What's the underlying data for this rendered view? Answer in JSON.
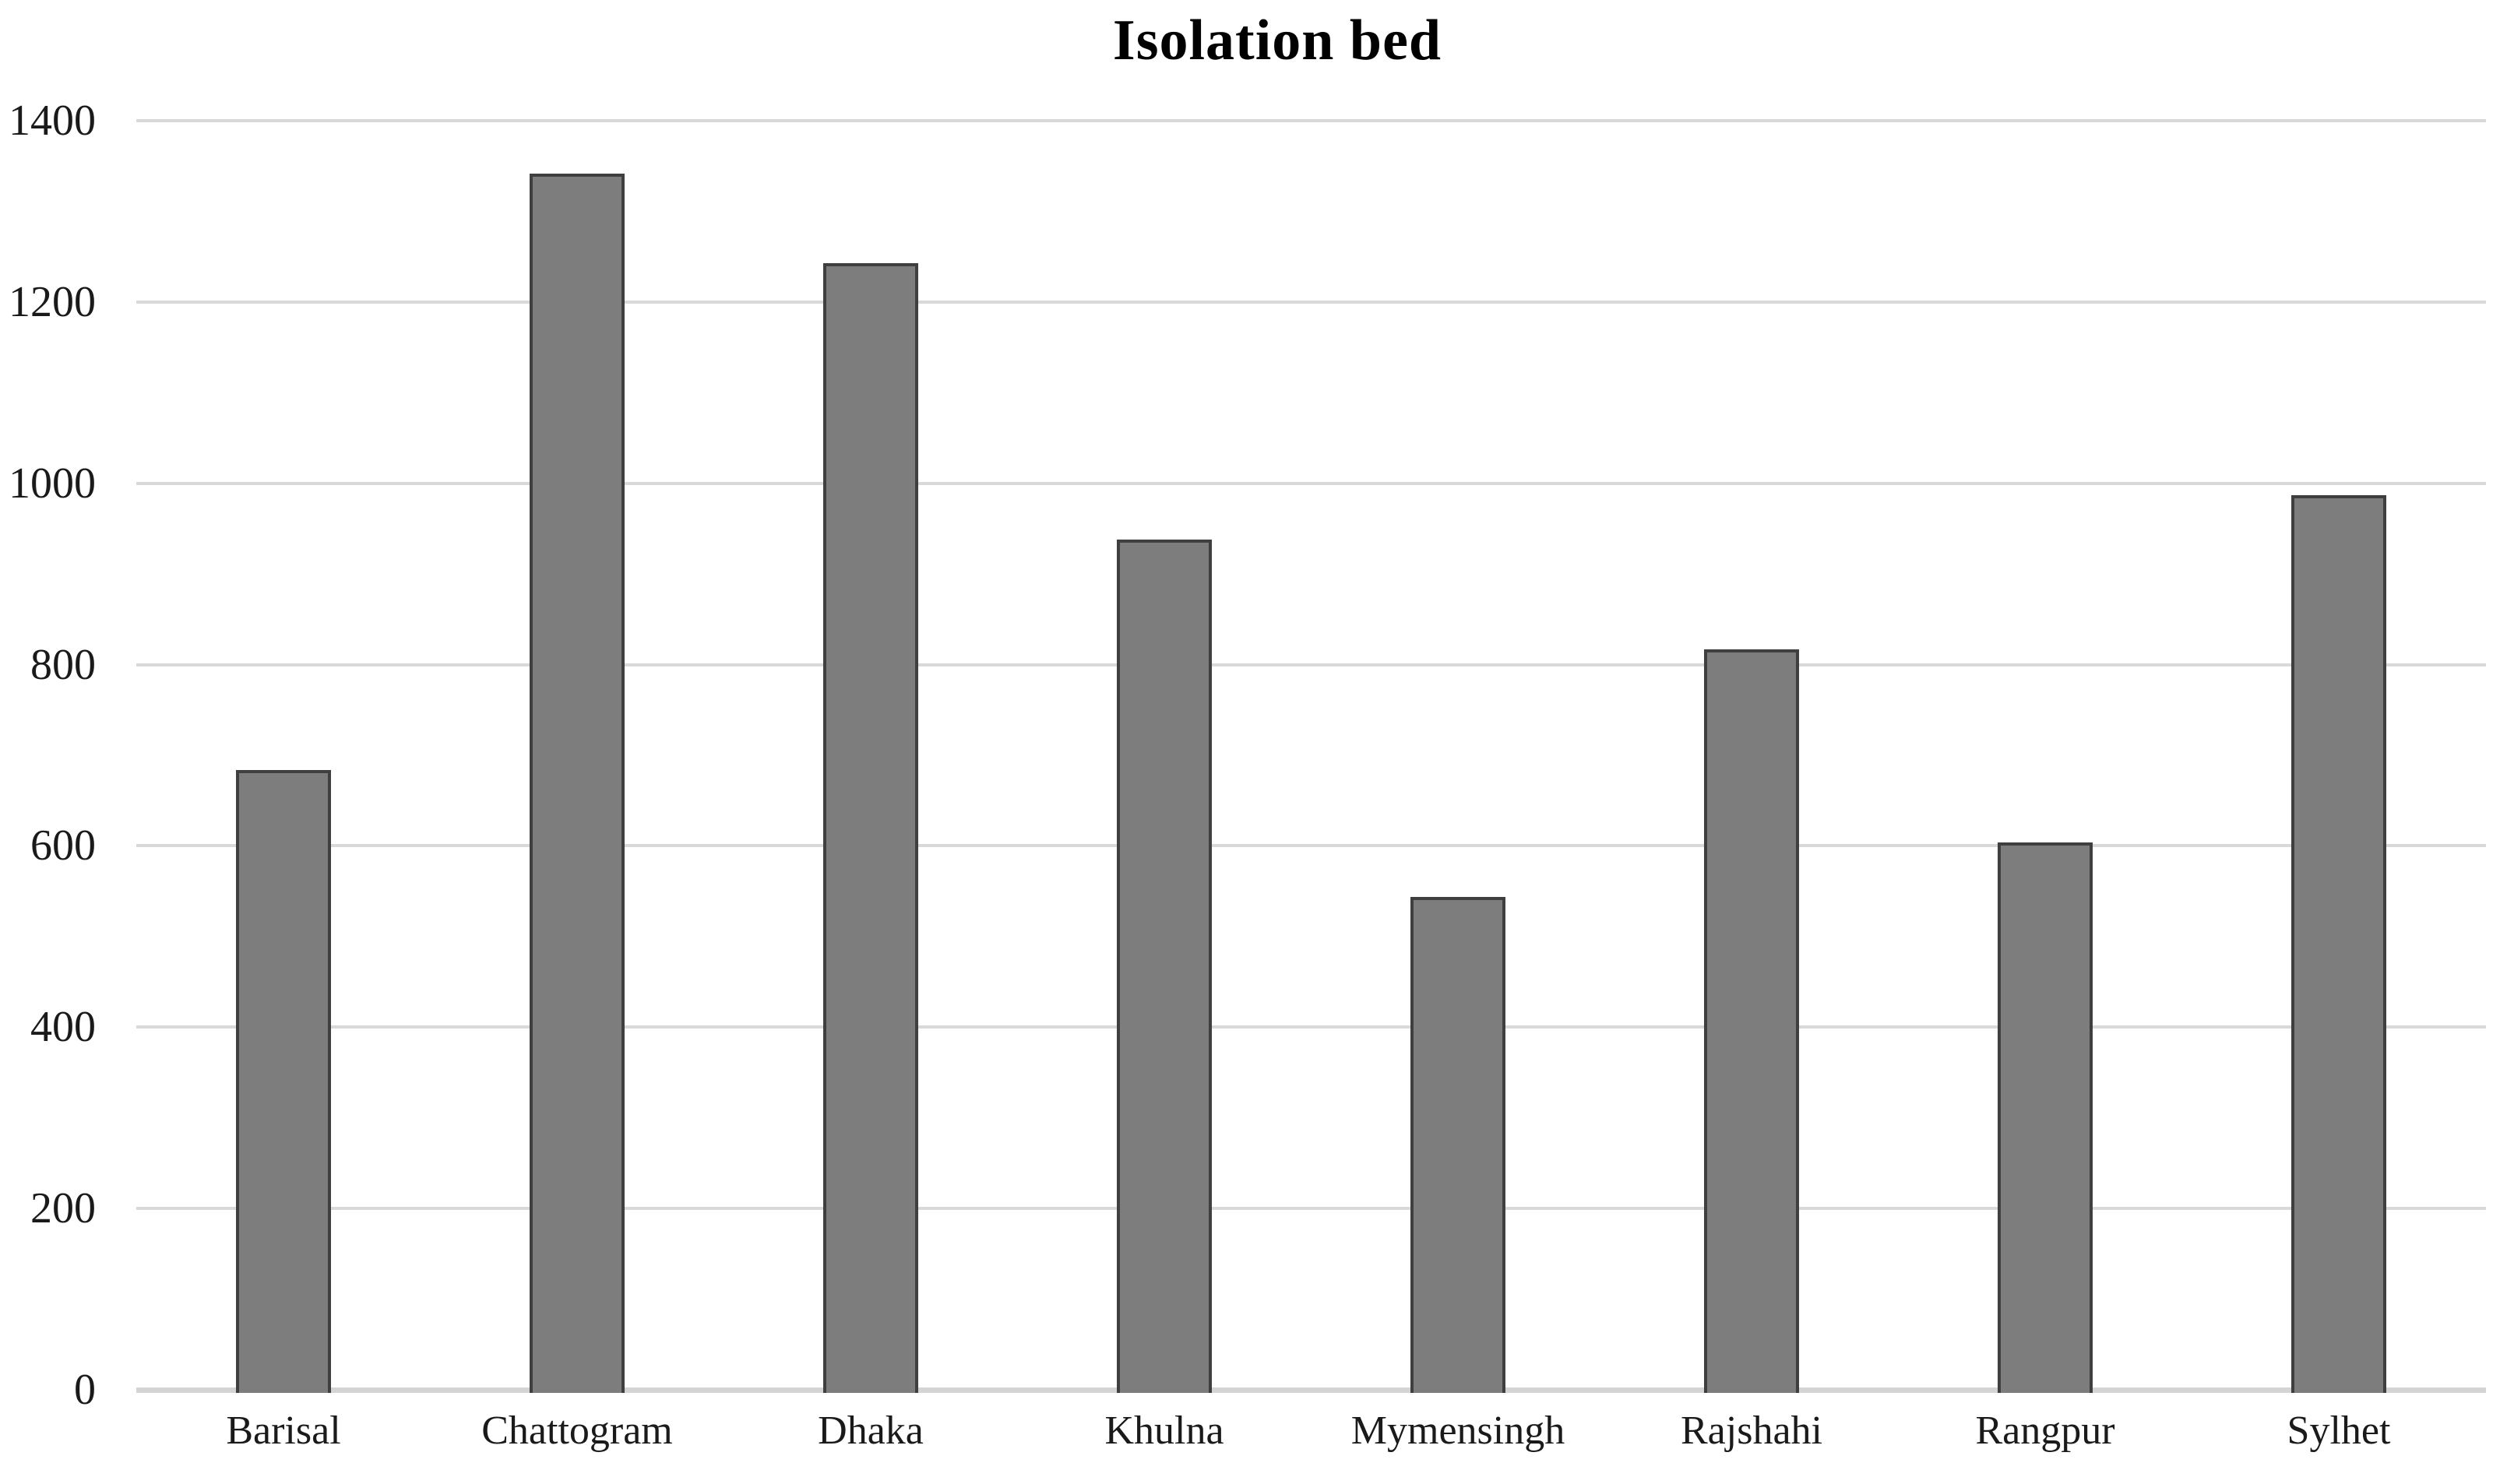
{
  "chart_data": {
    "type": "bar",
    "title": "Isolation bed",
    "categories": [
      "Barisal",
      "Chattogram",
      "Dhaka",
      "Khulna",
      "Mymensingh",
      "Rajshahi",
      "Rangpur",
      "Sylhet"
    ],
    "values": [
      684,
      1342,
      1243,
      938,
      544,
      817,
      604,
      987
    ],
    "xlabel": "",
    "ylabel": "",
    "ylim": [
      0,
      1400
    ],
    "yticks": [
      0,
      200,
      400,
      600,
      800,
      1000,
      1200,
      1400
    ],
    "grid": true,
    "legend": false,
    "colors": {
      "background": "#ffffff",
      "bar_fill": "#7d7d7d",
      "bar_border": "#3f3f3f",
      "gridline": "#d9d9d9",
      "axis_line": "#d4d4d4",
      "text": "#1a1a1a",
      "title_text": "#000000"
    }
  }
}
